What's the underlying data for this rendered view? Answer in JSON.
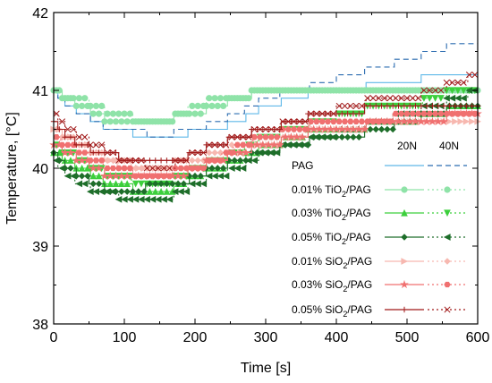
{
  "chart_data": {
    "type": "line",
    "xlabel": "Time [s]",
    "ylabel": "Temperature, [°C]",
    "xlim": [
      0,
      600
    ],
    "ylim": [
      38,
      42
    ],
    "xticks": [
      "0",
      "100",
      "200",
      "300",
      "400",
      "500",
      "600"
    ],
    "yticks": [
      "38",
      "39",
      "40",
      "41",
      "42"
    ],
    "legend_position": "right",
    "legend_header": [
      "20N",
      "40N"
    ],
    "legend_labels": [
      {
        "base": "PAG",
        "sub": "",
        "tail": ""
      },
      {
        "base": "0.01% TiO",
        "sub": "2",
        "tail": "/PAG"
      },
      {
        "base": "0.03% TiO",
        "sub": "2",
        "tail": "/PAG"
      },
      {
        "base": "0.05% TiO",
        "sub": "2",
        "tail": "/PAG"
      },
      {
        "base": "0.01% SiO",
        "sub": "2",
        "tail": "/PAG"
      },
      {
        "base": "0.03% SiO",
        "sub": "2",
        "tail": "/PAG"
      },
      {
        "base": "0.05% SiO",
        "sub": "2",
        "tail": "/PAG"
      }
    ],
    "series": [
      {
        "group": 0,
        "load": "20N",
        "color": "#5fb8e8",
        "dash": "",
        "marker": "none",
        "x": [
          0,
          20,
          40,
          60,
          80,
          100,
          120,
          140,
          160,
          180,
          200,
          230,
          260,
          300,
          340,
          380,
          420,
          460,
          500,
          540,
          570,
          600
        ],
        "y": [
          41.0,
          40.8,
          40.7,
          40.6,
          40.5,
          40.5,
          40.4,
          40.4,
          40.4,
          40.4,
          40.5,
          40.5,
          40.6,
          40.8,
          40.9,
          41.0,
          41.0,
          41.1,
          41.1,
          41.2,
          41.2,
          41.2
        ]
      },
      {
        "group": 0,
        "load": "40N",
        "color": "#2b6cb0",
        "dash": "6,4",
        "marker": "none",
        "x": [
          0,
          20,
          40,
          60,
          80,
          100,
          120,
          140,
          160,
          180,
          200,
          230,
          260,
          300,
          340,
          380,
          420,
          460,
          500,
          540,
          570,
          600
        ],
        "y": [
          41.0,
          40.8,
          40.7,
          40.6,
          40.5,
          40.5,
          40.5,
          40.4,
          40.4,
          40.5,
          40.5,
          40.6,
          40.7,
          40.9,
          41.0,
          41.1,
          41.2,
          41.3,
          41.4,
          41.5,
          41.6,
          41.6
        ]
      },
      {
        "group": 1,
        "load": "20N",
        "color": "#8fe3a8",
        "dash": "",
        "marker": "circle",
        "x": [
          0,
          20,
          40,
          60,
          80,
          100,
          120,
          140,
          160,
          180,
          200,
          230,
          260,
          300,
          340,
          380,
          420,
          460,
          500,
          540,
          570,
          600
        ],
        "y": [
          41.0,
          40.9,
          40.8,
          40.7,
          40.6,
          40.6,
          40.6,
          40.6,
          40.6,
          40.7,
          40.7,
          40.8,
          40.9,
          41.0,
          41.0,
          41.0,
          41.0,
          41.0,
          41.0,
          41.0,
          41.0,
          41.0
        ]
      },
      {
        "group": 1,
        "load": "40N",
        "color": "#8fe3a8",
        "dash": "2,3",
        "marker": "circle",
        "x": [
          0,
          20,
          40,
          60,
          80,
          100,
          120,
          140,
          160,
          180,
          200,
          230,
          260,
          300,
          340,
          380,
          420,
          460,
          500,
          540,
          570,
          600
        ],
        "y": [
          41.0,
          40.9,
          40.9,
          40.8,
          40.7,
          40.7,
          40.6,
          40.6,
          40.6,
          40.7,
          40.8,
          40.9,
          40.9,
          41.0,
          41.0,
          41.0,
          41.0,
          41.0,
          41.0,
          41.0,
          41.0,
          41.0
        ]
      },
      {
        "group": 2,
        "load": "20N",
        "color": "#3ccf3c",
        "dash": "",
        "marker": "triangle",
        "x": [
          0,
          20,
          40,
          60,
          80,
          100,
          120,
          140,
          160,
          180,
          200,
          230,
          260,
          300,
          340,
          380,
          420,
          460,
          500,
          540,
          570,
          600
        ],
        "y": [
          40.2,
          40.1,
          40.0,
          39.9,
          39.8,
          39.8,
          39.7,
          39.7,
          39.7,
          39.8,
          39.9,
          40.0,
          40.1,
          40.3,
          40.4,
          40.5,
          40.5,
          40.6,
          40.6,
          40.7,
          40.8,
          40.8
        ]
      },
      {
        "group": 2,
        "load": "40N",
        "color": "#3ccf3c",
        "dash": "2,3",
        "marker": "triangle-down",
        "x": [
          0,
          20,
          40,
          60,
          80,
          100,
          120,
          140,
          160,
          180,
          200,
          230,
          260,
          300,
          340,
          380,
          420,
          460,
          500,
          540,
          570,
          600
        ],
        "y": [
          40.3,
          40.2,
          40.1,
          40.0,
          39.9,
          39.9,
          39.8,
          39.8,
          39.8,
          39.9,
          40.0,
          40.1,
          40.2,
          40.4,
          40.5,
          40.6,
          40.7,
          40.8,
          40.8,
          40.9,
          41.0,
          41.0
        ]
      },
      {
        "group": 3,
        "load": "20N",
        "color": "#1e6e2a",
        "dash": "",
        "marker": "diamond",
        "x": [
          0,
          20,
          40,
          60,
          80,
          100,
          120,
          140,
          160,
          180,
          200,
          230,
          260,
          300,
          340,
          380,
          420,
          460,
          500,
          540,
          570,
          600
        ],
        "y": [
          40.2,
          40.0,
          39.9,
          39.8,
          39.7,
          39.7,
          39.7,
          39.8,
          39.8,
          39.8,
          39.9,
          40.0,
          40.1,
          40.2,
          40.3,
          40.4,
          40.4,
          40.5,
          40.6,
          40.7,
          40.8,
          40.8
        ]
      },
      {
        "group": 3,
        "load": "40N",
        "color": "#1e6e2a",
        "dash": "2,3",
        "marker": "triangle-left",
        "x": [
          0,
          20,
          40,
          60,
          80,
          100,
          120,
          140,
          160,
          180,
          200,
          230,
          260,
          300,
          340,
          380,
          420,
          460,
          500,
          540,
          570,
          600
        ],
        "y": [
          40.1,
          39.9,
          39.8,
          39.7,
          39.7,
          39.6,
          39.6,
          39.6,
          39.6,
          39.7,
          39.8,
          39.9,
          40.0,
          40.2,
          40.3,
          40.4,
          40.5,
          40.6,
          40.7,
          40.8,
          40.9,
          41.0
        ]
      },
      {
        "group": 4,
        "load": "20N",
        "color": "#f7b8b0",
        "dash": "",
        "marker": "triangle-right",
        "x": [
          0,
          20,
          40,
          60,
          80,
          100,
          120,
          140,
          160,
          180,
          200,
          230,
          260,
          300,
          340,
          380,
          420,
          460,
          500,
          540,
          570,
          600
        ],
        "y": [
          40.5,
          40.4,
          40.3,
          40.2,
          40.1,
          40.0,
          40.0,
          40.0,
          40.0,
          40.0,
          40.0,
          40.1,
          40.2,
          40.3,
          40.4,
          40.5,
          40.5,
          40.6,
          40.6,
          40.6,
          40.6,
          40.6
        ]
      },
      {
        "group": 4,
        "load": "40N",
        "color": "#f7b8b0",
        "dash": "2,3",
        "marker": "diamond",
        "x": [
          0,
          20,
          40,
          60,
          80,
          100,
          120,
          140,
          160,
          180,
          200,
          230,
          260,
          300,
          340,
          380,
          420,
          460,
          500,
          540,
          570,
          600
        ],
        "y": [
          40.5,
          40.4,
          40.3,
          40.2,
          40.1,
          40.1,
          40.0,
          40.0,
          40.0,
          40.1,
          40.1,
          40.2,
          40.3,
          40.4,
          40.5,
          40.6,
          40.6,
          40.6,
          40.7,
          40.7,
          40.7,
          40.7
        ]
      },
      {
        "group": 5,
        "load": "20N",
        "color": "#f07070",
        "dash": "",
        "marker": "star",
        "x": [
          0,
          20,
          40,
          60,
          80,
          100,
          120,
          140,
          160,
          180,
          200,
          230,
          260,
          300,
          340,
          380,
          420,
          460,
          500,
          540,
          570,
          600
        ],
        "y": [
          40.3,
          40.2,
          40.1,
          40.0,
          39.9,
          39.9,
          39.9,
          39.9,
          39.9,
          39.9,
          40.0,
          40.1,
          40.2,
          40.3,
          40.4,
          40.5,
          40.5,
          40.6,
          40.6,
          40.6,
          40.7,
          40.7
        ]
      },
      {
        "group": 5,
        "load": "40N",
        "color": "#f07070",
        "dash": "2,3",
        "marker": "hexagon",
        "x": [
          0,
          20,
          40,
          60,
          80,
          100,
          120,
          140,
          160,
          180,
          200,
          230,
          260,
          300,
          340,
          380,
          420,
          460,
          500,
          540,
          570,
          600
        ],
        "y": [
          40.4,
          40.3,
          40.2,
          40.1,
          40.0,
          40.0,
          39.9,
          39.9,
          39.9,
          40.0,
          40.0,
          40.1,
          40.3,
          40.4,
          40.5,
          40.6,
          40.6,
          40.6,
          40.7,
          40.7,
          40.7,
          40.7
        ]
      },
      {
        "group": 6,
        "load": "20N",
        "color": "#a01818",
        "dash": "",
        "marker": "plus",
        "x": [
          0,
          20,
          40,
          60,
          80,
          100,
          120,
          140,
          160,
          180,
          200,
          230,
          260,
          300,
          340,
          380,
          420,
          460,
          500,
          540,
          570,
          600
        ],
        "y": [
          40.6,
          40.4,
          40.3,
          40.2,
          40.2,
          40.1,
          40.1,
          40.1,
          40.1,
          40.1,
          40.2,
          40.3,
          40.4,
          40.5,
          40.6,
          40.7,
          40.7,
          40.8,
          40.8,
          40.8,
          40.8,
          40.8
        ]
      },
      {
        "group": 6,
        "load": "40N",
        "color": "#a01818",
        "dash": "2,3",
        "marker": "cross",
        "x": [
          0,
          20,
          40,
          60,
          80,
          100,
          120,
          140,
          160,
          180,
          200,
          230,
          260,
          300,
          340,
          380,
          420,
          460,
          500,
          540,
          570,
          600
        ],
        "y": [
          40.7,
          40.5,
          40.4,
          40.3,
          40.2,
          40.1,
          40.1,
          40.0,
          40.0,
          40.1,
          40.2,
          40.3,
          40.4,
          40.5,
          40.6,
          40.7,
          40.8,
          40.9,
          40.9,
          41.0,
          41.1,
          41.2
        ]
      }
    ]
  }
}
